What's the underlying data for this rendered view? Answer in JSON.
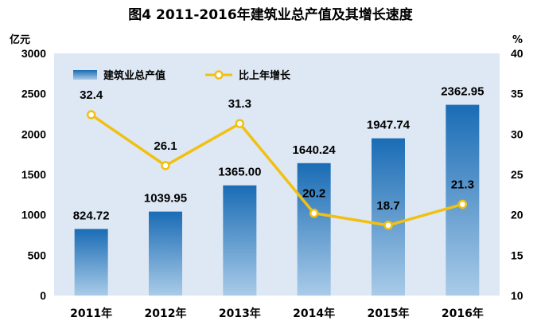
{
  "chart_data": {
    "type": "bar+line",
    "title": "图4  2011-2016年建筑业总产值及其增长速度",
    "categories": [
      "2011年",
      "2012年",
      "2013年",
      "2014年",
      "2015年",
      "2016年"
    ],
    "left_axis": {
      "unit": "亿元",
      "ylim": [
        0,
        3000
      ],
      "ticks": [
        "0",
        "500",
        "1000",
        "1500",
        "2000",
        "2500",
        "3000"
      ]
    },
    "right_axis": {
      "unit": "%",
      "ylim": [
        10,
        40
      ],
      "ticks": [
        "10",
        "15",
        "20",
        "25",
        "30",
        "35",
        "40"
      ]
    },
    "series": [
      {
        "name": "建筑业总产值",
        "type": "bar",
        "axis": "left",
        "values": [
          824.72,
          1039.95,
          1365.0,
          1640.24,
          1947.74,
          2362.95
        ],
        "labels": [
          "824.72",
          "1039.95",
          "1365.00",
          "1640.24",
          "1947.74",
          "2362.95"
        ]
      },
      {
        "name": "比上年增长",
        "type": "line",
        "axis": "right",
        "values": [
          32.4,
          26.1,
          31.3,
          20.2,
          18.7,
          21.3
        ],
        "labels": [
          "32.4",
          "26.1",
          "31.3",
          "20.2",
          "18.7",
          "21.3"
        ]
      }
    ],
    "legend": "top-left",
    "grid": false,
    "colors": {
      "plot_bg": "#dde8f4",
      "bar_top": "#1a6cb5",
      "bar_bottom": "#a9cbe8",
      "line": "#f2c012",
      "marker_fill": "#ffffff"
    }
  }
}
